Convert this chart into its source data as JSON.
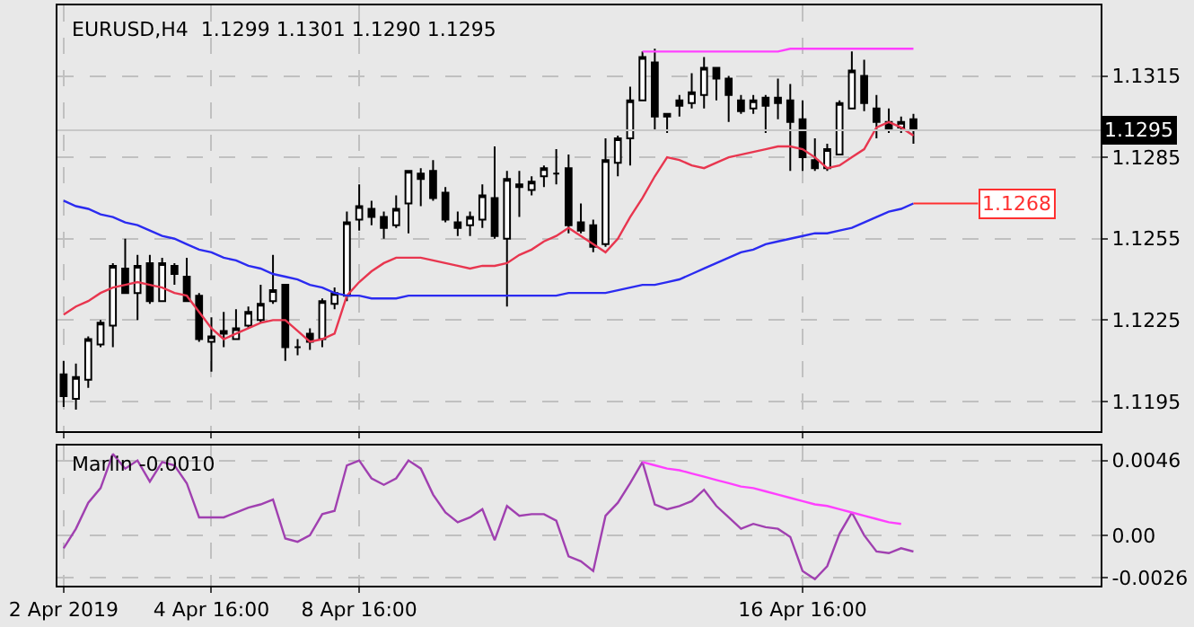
{
  "chart_data": [
    {
      "type": "candlestick",
      "title": "EURUSD,H4  1.1299 1.1301 1.1290 1.1295",
      "categories": [
        null,
        null,
        null,
        null,
        null,
        null,
        null,
        null,
        null,
        null,
        null,
        null,
        null,
        null,
        null,
        null,
        null,
        null,
        null,
        null,
        null,
        null,
        null,
        null,
        null,
        null,
        null,
        null,
        null,
        null,
        null,
        null,
        null,
        null,
        null,
        null,
        null,
        null,
        null,
        null,
        null,
        null,
        null,
        null,
        null,
        null,
        null,
        null,
        null,
        null,
        null,
        null,
        null,
        null,
        null,
        null,
        null,
        null,
        null,
        null,
        null,
        null,
        null,
        null,
        null,
        null,
        null,
        null,
        null,
        null
      ],
      "ohlc": [
        [
          1.1205,
          1.121,
          1.1193,
          1.1197
        ],
        [
          1.1196,
          1.1209,
          1.1192,
          1.1204
        ],
        [
          1.1203,
          1.1219,
          1.12,
          1.1218
        ],
        [
          1.1216,
          1.1225,
          1.1215,
          1.1224
        ],
        [
          1.1223,
          1.1246,
          1.1215,
          1.1245
        ],
        [
          1.1244,
          1.1255,
          1.1235,
          1.1235
        ],
        [
          1.1235,
          1.1249,
          1.1225,
          1.1245
        ],
        [
          1.1246,
          1.1249,
          1.1231,
          1.1232
        ],
        [
          1.1232,
          1.1248,
          1.1232,
          1.1246
        ],
        [
          1.1245,
          1.1246,
          1.1238,
          1.1242
        ],
        [
          1.1241,
          1.1248,
          1.1232,
          1.1232
        ],
        [
          1.1234,
          1.1235,
          1.1217,
          1.1218
        ],
        [
          1.1217,
          1.1226,
          1.1206,
          1.1219
        ],
        [
          1.122,
          1.1228,
          1.1215,
          1.1221
        ],
        [
          1.1218,
          1.1229,
          1.1218,
          1.1222
        ],
        [
          1.1223,
          1.123,
          1.1222,
          1.1228
        ],
        [
          1.1225,
          1.1238,
          1.1224,
          1.1231
        ],
        [
          1.1232,
          1.1249,
          1.1231,
          1.1236
        ],
        [
          1.1238,
          1.1238,
          1.121,
          1.1215
        ],
        [
          1.1215,
          1.1218,
          1.1212,
          1.1215
        ],
        [
          1.122,
          1.1222,
          1.1214,
          1.1217
        ],
        [
          1.1218,
          1.1233,
          1.1215,
          1.1232
        ],
        [
          1.1231,
          1.1237,
          1.1229,
          1.1235
        ],
        [
          1.1234,
          1.1265,
          1.1232,
          1.1261
        ],
        [
          1.1262,
          1.1275,
          1.1258,
          1.1267
        ],
        [
          1.1266,
          1.1269,
          1.126,
          1.1263
        ],
        [
          1.1263,
          1.1265,
          1.1255,
          1.1259
        ],
        [
          1.126,
          1.1271,
          1.1259,
          1.1266
        ],
        [
          1.1268,
          1.128,
          1.1257,
          1.128
        ],
        [
          1.1279,
          1.1281,
          1.1267,
          1.1277
        ],
        [
          1.128,
          1.1284,
          1.1269,
          1.127
        ],
        [
          1.1272,
          1.1274,
          1.1261,
          1.1262
        ],
        [
          1.1261,
          1.1265,
          1.1256,
          1.1259
        ],
        [
          1.126,
          1.1265,
          1.1256,
          1.1263
        ],
        [
          1.1262,
          1.1275,
          1.1259,
          1.1271
        ],
        [
          1.127,
          1.1289,
          1.1255,
          1.1256
        ],
        [
          1.1255,
          1.128,
          1.123,
          1.1277
        ],
        [
          1.1275,
          1.128,
          1.1263,
          1.1274
        ],
        [
          1.1273,
          1.1278,
          1.1271,
          1.1276
        ],
        [
          1.1278,
          1.1282,
          1.1274,
          1.1281
        ],
        [
          1.1279,
          1.1288,
          1.1275,
          1.1279
        ],
        [
          1.1281,
          1.1286,
          1.1257,
          1.126
        ],
        [
          1.1261,
          1.1268,
          1.1257,
          1.1258
        ],
        [
          1.126,
          1.1262,
          1.125,
          1.1252
        ],
        [
          1.1253,
          1.1292,
          1.1252,
          1.1284
        ],
        [
          1.1283,
          1.1293,
          1.1278,
          1.1292
        ],
        [
          1.1292,
          1.1311,
          1.1282,
          1.1306
        ],
        [
          1.1306,
          1.1324,
          1.1306,
          1.1322
        ],
        [
          1.132,
          1.1325,
          1.1295,
          1.13
        ],
        [
          1.1301,
          1.1301,
          1.1294,
          1.13
        ],
        [
          1.1306,
          1.1308,
          1.13,
          1.1304
        ],
        [
          1.1305,
          1.1316,
          1.1303,
          1.1309
        ],
        [
          1.1308,
          1.1322,
          1.1303,
          1.1318
        ],
        [
          1.1318,
          1.1318,
          1.1306,
          1.1314
        ],
        [
          1.1314,
          1.1315,
          1.1298,
          1.1308
        ],
        [
          1.1306,
          1.1308,
          1.1301,
          1.1302
        ],
        [
          1.1303,
          1.1308,
          1.1301,
          1.1306
        ],
        [
          1.1307,
          1.1308,
          1.1294,
          1.1304
        ],
        [
          1.1307,
          1.1314,
          1.1299,
          1.1305
        ],
        [
          1.1306,
          1.1312,
          1.128,
          1.1298
        ],
        [
          1.1299,
          1.1306,
          1.128,
          1.1285
        ],
        [
          1.1284,
          1.1292,
          1.128,
          1.1281
        ],
        [
          1.1281,
          1.129,
          1.128,
          1.1288
        ],
        [
          1.1286,
          1.1306,
          1.1286,
          1.1305
        ],
        [
          1.1303,
          1.1324,
          1.1303,
          1.1317
        ],
        [
          1.1315,
          1.1321,
          1.1302,
          1.1305
        ],
        [
          1.1303,
          1.1308,
          1.1292,
          1.1298
        ],
        [
          1.1298,
          1.1303,
          1.1294,
          1.1295
        ],
        [
          1.1296,
          1.13,
          1.1294,
          1.1298
        ],
        [
          1.1299,
          1.1301,
          1.129,
          1.1295
        ]
      ],
      "series": [
        {
          "type": "line",
          "color": "#e8364f",
          "values": [
            1.1227,
            1.123,
            1.1232,
            1.1235,
            1.1237,
            1.1238,
            1.1239,
            1.1238,
            1.1237,
            1.1235,
            1.1234,
            1.1228,
            1.1222,
            1.1218,
            1.122,
            1.1222,
            1.1224,
            1.1225,
            1.1225,
            1.1221,
            1.1217,
            1.1218,
            1.122,
            1.1234,
            1.1239,
            1.1243,
            1.1246,
            1.1248,
            1.1248,
            1.1248,
            1.1247,
            1.1246,
            1.1245,
            1.1244,
            1.1245,
            1.1245,
            1.1246,
            1.1249,
            1.1251,
            1.1254,
            1.1256,
            1.1259,
            1.1256,
            1.1253,
            1.125,
            1.1255,
            1.1263,
            1.127,
            1.1278,
            1.1285,
            1.1284,
            1.1282,
            1.1281,
            1.1283,
            1.1285,
            1.1286,
            1.1287,
            1.1288,
            1.1289,
            1.1289,
            1.1288,
            1.1285,
            1.1281,
            1.1282,
            1.1285,
            1.1288,
            1.1296,
            1.1298,
            1.1296,
            1.1293
          ]
        },
        {
          "type": "line",
          "color": "#2b2bf0",
          "values": [
            1.1269,
            1.1267,
            1.1266,
            1.1264,
            1.1263,
            1.1261,
            1.126,
            1.1258,
            1.1256,
            1.1255,
            1.1253,
            1.1251,
            1.125,
            1.1248,
            1.1247,
            1.1245,
            1.1244,
            1.1242,
            1.1241,
            1.124,
            1.1238,
            1.1237,
            1.1235,
            1.1234,
            1.1234,
            1.1233,
            1.1233,
            1.1233,
            1.1234,
            1.1234,
            1.1234,
            1.1234,
            1.1234,
            1.1234,
            1.1234,
            1.1234,
            1.1234,
            1.1234,
            1.1234,
            1.1234,
            1.1234,
            1.1235,
            1.1235,
            1.1235,
            1.1235,
            1.1236,
            1.1237,
            1.1238,
            1.1238,
            1.1239,
            1.124,
            1.1242,
            1.1244,
            1.1246,
            1.1248,
            1.125,
            1.1251,
            1.1253,
            1.1254,
            1.1255,
            1.1256,
            1.1257,
            1.1257,
            1.1258,
            1.1259,
            1.1261,
            1.1263,
            1.1265,
            1.1266,
            1.1268
          ]
        },
        {
          "type": "line",
          "color": "#ff40ff",
          "values": [
            null,
            null,
            null,
            null,
            null,
            null,
            null,
            null,
            null,
            null,
            null,
            null,
            null,
            null,
            null,
            null,
            null,
            null,
            null,
            null,
            null,
            null,
            null,
            null,
            null,
            null,
            null,
            null,
            null,
            null,
            null,
            null,
            null,
            null,
            null,
            null,
            null,
            null,
            null,
            null,
            null,
            null,
            null,
            null,
            null,
            null,
            null,
            1.1324,
            1.1324,
            1.1324,
            1.1324,
            1.1324,
            1.1324,
            1.1324,
            1.1324,
            1.1324,
            1.1324,
            1.1324,
            1.1324,
            1.1325,
            1.1325,
            1.1325,
            1.1325,
            1.1325,
            1.1325,
            1.1325,
            1.1325,
            1.1325,
            1.1325,
            1.1325
          ]
        }
      ],
      "annotations": [
        "1.1268"
      ],
      "ref_lines": [
        {
          "axis": "y",
          "value": 1.1295,
          "label": "1.1295",
          "color": "#c8c8c8"
        }
      ],
      "ylim": [
        1.1184,
        1.1341
      ],
      "yticks": [
        1.1195,
        1.1225,
        1.1255,
        1.1285,
        1.1315
      ],
      "grid": true
    },
    {
      "type": "line",
      "title": "Marlin -0.0010",
      "categories": [
        "2 Apr 2019",
        null,
        null,
        null,
        null,
        null,
        null,
        null,
        null,
        null,
        null,
        null,
        "4 Apr 16:00",
        null,
        null,
        null,
        null,
        null,
        null,
        null,
        null,
        null,
        null,
        null,
        "8 Apr 16:00",
        null,
        null,
        null,
        null,
        null,
        null,
        null,
        null,
        null,
        null,
        null,
        null,
        null,
        null,
        null,
        null,
        null,
        null,
        null,
        null,
        null,
        null,
        null,
        null,
        null,
        null,
        null,
        null,
        null,
        null,
        null,
        null,
        null,
        null,
        null,
        "16 Apr 16:00",
        null,
        null,
        null,
        null,
        null,
        null,
        null,
        null,
        null
      ],
      "series": [
        {
          "color": "#a040b0",
          "values": [
            -0.0008,
            0.0004,
            0.002,
            0.0029,
            0.005,
            0.0041,
            0.0046,
            0.0033,
            0.0045,
            0.0043,
            0.0032,
            0.0011,
            0.0011,
            0.0011,
            0.0014,
            0.0017,
            0.0019,
            0.0022,
            -0.0002,
            -0.0004,
            0.0,
            0.0013,
            0.0015,
            0.0043,
            0.0046,
            0.0035,
            0.0031,
            0.0035,
            0.0046,
            0.0041,
            0.0025,
            0.0014,
            0.0008,
            0.0011,
            0.0016,
            -0.0003,
            0.0018,
            0.0012,
            0.0013,
            0.0013,
            0.0009,
            -0.0013,
            -0.0016,
            -0.0022,
            0.0012,
            0.002,
            0.0032,
            0.0045,
            0.0019,
            0.0016,
            0.0018,
            0.0021,
            0.0028,
            0.0018,
            0.0011,
            0.0004,
            0.0007,
            0.0005,
            0.0004,
            -0.0001,
            -0.0022,
            -0.0027,
            -0.0019,
            0.0001,
            0.0014,
            0.0,
            -0.001,
            -0.0011,
            -0.0008,
            -0.001
          ]
        },
        {
          "color": "#ff40ff",
          "values": [
            null,
            null,
            null,
            null,
            null,
            null,
            null,
            null,
            null,
            null,
            null,
            null,
            null,
            null,
            null,
            null,
            null,
            null,
            null,
            null,
            null,
            null,
            null,
            null,
            null,
            null,
            null,
            null,
            null,
            null,
            null,
            null,
            null,
            null,
            null,
            null,
            null,
            null,
            null,
            null,
            null,
            null,
            null,
            null,
            null,
            null,
            null,
            0.0045,
            0.0043,
            0.0041,
            0.004,
            0.0038,
            0.0036,
            0.0034,
            0.0032,
            0.003,
            0.0029,
            0.0027,
            0.0025,
            0.0023,
            0.0021,
            0.0019,
            0.0018,
            0.0016,
            0.0014,
            0.0012,
            0.001,
            0.0008,
            0.0007,
            null
          ]
        }
      ],
      "ylim": [
        -0.0031,
        0.0055
      ],
      "yticks": [
        0.0046,
        {
          "value": 0,
          "label": "0.00"
        },
        -0.0026
      ],
      "grid": true
    }
  ]
}
